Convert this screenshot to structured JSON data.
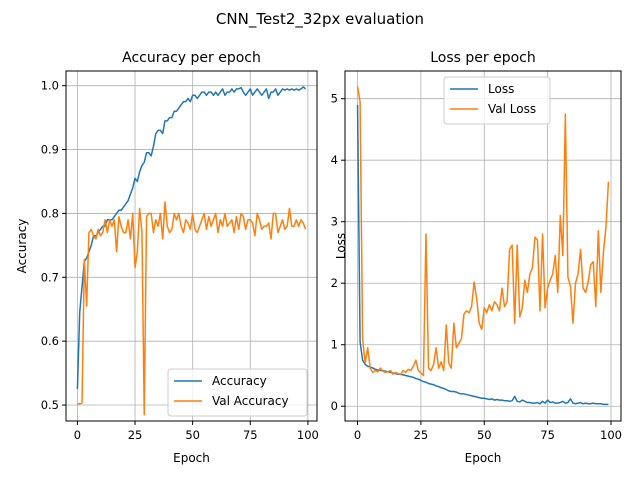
{
  "figure": {
    "suptitle": "CNN_Test2_32px evaluation"
  },
  "colors": {
    "blue": "#1f77b4",
    "orange": "#ff7f0e"
  },
  "chart_data": [
    {
      "type": "line",
      "title": "Accuracy per epoch",
      "xlabel": "Epoch",
      "ylabel": "Accuracy",
      "xlim": [
        -4.95,
        103.95
      ],
      "ylim": [
        0.475,
        1.023
      ],
      "xticks": [
        0,
        25,
        50,
        75,
        100
      ],
      "yticks": [
        0.5,
        0.6,
        0.7,
        0.8,
        0.9,
        1.0
      ],
      "xtick_labels": [
        "0",
        "25",
        "50",
        "75",
        "100"
      ],
      "ytick_labels": [
        "0.5",
        "0.6",
        "0.7",
        "0.8",
        "0.9",
        "1.0"
      ],
      "grid": true,
      "legend": "lower-right",
      "series": [
        {
          "name": "Accuracy",
          "color": "#1f77b4",
          "values": [
            0.525,
            0.645,
            0.685,
            0.725,
            0.73,
            0.74,
            0.75,
            0.765,
            0.765,
            0.77,
            0.775,
            0.78,
            0.78,
            0.79,
            0.79,
            0.79,
            0.795,
            0.8,
            0.805,
            0.805,
            0.81,
            0.815,
            0.82,
            0.83,
            0.84,
            0.855,
            0.85,
            0.865,
            0.875,
            0.88,
            0.895,
            0.895,
            0.89,
            0.905,
            0.925,
            0.93,
            0.93,
            0.925,
            0.945,
            0.945,
            0.95,
            0.95,
            0.96,
            0.96,
            0.965,
            0.97,
            0.975,
            0.975,
            0.98,
            0.975,
            0.985,
            0.985,
            0.98,
            0.985,
            0.99,
            0.99,
            0.985,
            0.99,
            0.99,
            0.985,
            0.99,
            0.985,
            0.99,
            0.995,
            0.985,
            0.99,
            0.99,
            0.995,
            0.99,
            0.995,
            0.995,
            0.997,
            0.99,
            0.985,
            0.99,
            0.995,
            0.985,
            0.99,
            0.995,
            0.99,
            0.985,
            0.99,
            0.995,
            0.98,
            0.99,
            0.99,
            0.995,
            0.985,
            0.99,
            0.995,
            0.993,
            0.995,
            0.993,
            0.995,
            0.993,
            0.995,
            0.993,
            0.995,
            0.998,
            0.995
          ]
        },
        {
          "name": "Val Accuracy",
          "color": "#ff7f0e",
          "values": [
            0.502,
            0.502,
            0.503,
            0.728,
            0.655,
            0.77,
            0.775,
            0.765,
            0.76,
            0.775,
            0.765,
            0.77,
            0.79,
            0.77,
            0.79,
            0.78,
            0.79,
            0.74,
            0.795,
            0.78,
            0.77,
            0.77,
            0.79,
            0.76,
            0.8,
            0.715,
            0.74,
            0.808,
            0.77,
            0.485,
            0.795,
            0.8,
            0.8,
            0.77,
            0.79,
            0.78,
            0.8,
            0.76,
            0.818,
            0.78,
            0.77,
            0.775,
            0.8,
            0.79,
            0.8,
            0.78,
            0.77,
            0.79,
            0.785,
            0.775,
            0.8,
            0.775,
            0.77,
            0.78,
            0.79,
            0.8,
            0.775,
            0.795,
            0.78,
            0.79,
            0.8,
            0.77,
            0.79,
            0.78,
            0.8,
            0.78,
            0.785,
            0.79,
            0.77,
            0.795,
            0.775,
            0.8,
            0.795,
            0.775,
            0.79,
            0.79,
            0.785,
            0.765,
            0.8,
            0.79,
            0.775,
            0.78,
            0.78,
            0.785,
            0.76,
            0.8,
            0.8,
            0.77,
            0.78,
            0.79,
            0.775,
            0.78,
            0.808,
            0.78,
            0.78,
            0.79,
            0.78,
            0.79,
            0.785,
            0.775
          ]
        }
      ]
    },
    {
      "type": "line",
      "title": "Loss per epoch",
      "xlabel": "Epoch",
      "ylabel": "Loss",
      "xlim": [
        -4.95,
        103.95
      ],
      "ylim": [
        -0.24,
        5.45
      ],
      "xticks": [
        0,
        25,
        50,
        75,
        100
      ],
      "yticks": [
        0,
        1,
        2,
        3,
        4,
        5
      ],
      "xtick_labels": [
        "0",
        "25",
        "50",
        "75",
        "100"
      ],
      "ytick_labels": [
        "0",
        "1",
        "2",
        "3",
        "4",
        "5"
      ],
      "grid": true,
      "legend": "upper-center",
      "series": [
        {
          "name": "Loss",
          "color": "#1f77b4",
          "values": [
            4.9,
            1.05,
            0.75,
            0.68,
            0.65,
            0.64,
            0.62,
            0.6,
            0.59,
            0.58,
            0.58,
            0.57,
            0.56,
            0.55,
            0.54,
            0.53,
            0.52,
            0.52,
            0.51,
            0.5,
            0.49,
            0.48,
            0.47,
            0.45,
            0.44,
            0.42,
            0.4,
            0.39,
            0.37,
            0.36,
            0.35,
            0.33,
            0.32,
            0.3,
            0.29,
            0.27,
            0.25,
            0.24,
            0.24,
            0.23,
            0.21,
            0.2,
            0.2,
            0.19,
            0.18,
            0.17,
            0.16,
            0.15,
            0.14,
            0.13,
            0.13,
            0.12,
            0.11,
            0.12,
            0.1,
            0.11,
            0.1,
            0.1,
            0.09,
            0.09,
            0.08,
            0.09,
            0.16,
            0.08,
            0.07,
            0.1,
            0.08,
            0.06,
            0.06,
            0.05,
            0.05,
            0.06,
            0.04,
            0.08,
            0.05,
            0.1,
            0.06,
            0.07,
            0.05,
            0.05,
            0.06,
            0.08,
            0.05,
            0.06,
            0.12,
            0.05,
            0.04,
            0.05,
            0.06,
            0.04,
            0.05,
            0.04,
            0.04,
            0.05,
            0.04,
            0.04,
            0.04,
            0.03,
            0.03,
            0.03
          ]
        },
        {
          "name": "Val Loss",
          "color": "#ff7f0e",
          "values": [
            5.2,
            4.95,
            1.1,
            0.7,
            0.95,
            0.62,
            0.55,
            0.58,
            0.56,
            0.62,
            0.57,
            0.55,
            0.56,
            0.58,
            0.52,
            0.55,
            0.53,
            0.52,
            0.58,
            0.55,
            0.6,
            0.58,
            0.65,
            0.75,
            0.58,
            0.54,
            0.5,
            2.8,
            0.62,
            0.58,
            0.68,
            0.95,
            0.62,
            0.72,
            0.58,
            1.32,
            0.7,
            0.62,
            1.35,
            0.95,
            1.02,
            1.1,
            1.5,
            1.55,
            1.52,
            1.62,
            2.02,
            1.75,
            1.35,
            1.25,
            1.6,
            1.52,
            1.65,
            1.55,
            1.7,
            1.65,
            1.55,
            1.92,
            1.62,
            1.7,
            2.55,
            2.62,
            1.35,
            2.62,
            1.45,
            1.6,
            2.05,
            1.85,
            2.15,
            2.25,
            2.75,
            2.7,
            1.55,
            2.8,
            1.6,
            1.92,
            2.05,
            2.15,
            2.45,
            1.85,
            3.1,
            2.45,
            4.75,
            2.1,
            1.95,
            1.35,
            2.0,
            2.15,
            2.55,
            1.92,
            1.85,
            2.02,
            2.3,
            2.35,
            1.62,
            2.85,
            1.85,
            2.5,
            2.9,
            3.65
          ]
        }
      ]
    }
  ]
}
